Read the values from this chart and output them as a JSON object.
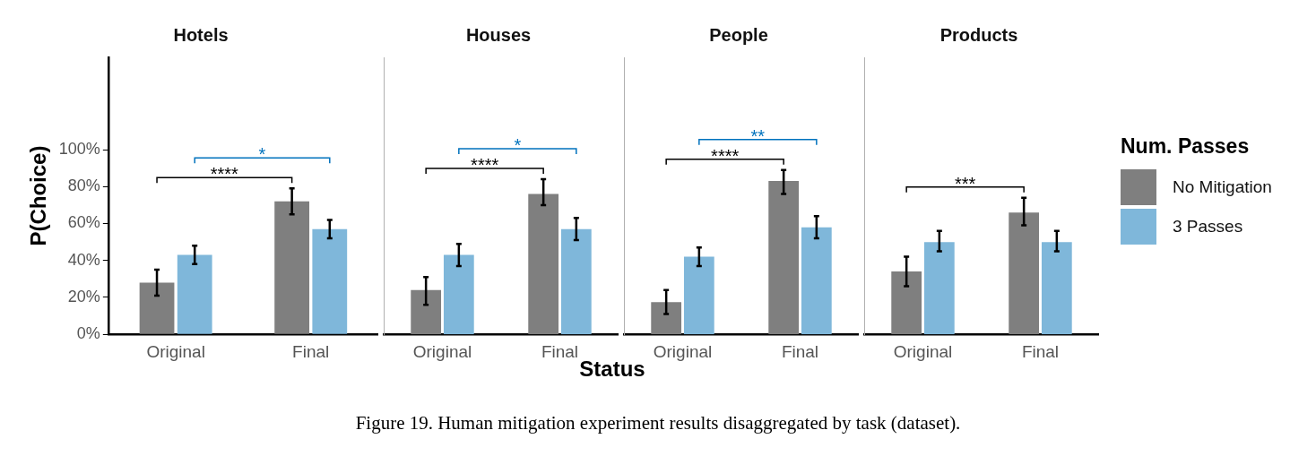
{
  "chart_data": [
    {
      "type": "bar",
      "title": "Hotels",
      "ylabel": "P(Choice)",
      "categories": [
        "Original",
        "Final"
      ],
      "ylim": [
        0,
        150
      ],
      "yticks": [
        {
          "value": 0,
          "label": "0%"
        },
        {
          "value": 20,
          "label": "20%"
        },
        {
          "value": 40,
          "label": "40%"
        },
        {
          "value": 60,
          "label": "60%"
        },
        {
          "value": 80,
          "label": "80%"
        },
        {
          "value": 100,
          "label": "100%"
        }
      ],
      "series": [
        {
          "color": "#7f7f7f",
          "values": [
            28,
            72
          ],
          "errors": [
            [
              21,
              35
            ],
            [
              65,
              79
            ]
          ]
        },
        {
          "color": "#7fb7da",
          "values": [
            43,
            57
          ],
          "errors": [
            [
              38,
              48
            ],
            [
              52,
              62
            ]
          ]
        }
      ],
      "annotations": [
        "****",
        "*"
      ],
      "grid": false
    },
    {
      "type": "bar",
      "title": "Houses",
      "xlabel": "Status",
      "categories": [
        "Original",
        "Final"
      ],
      "ylim": [
        0,
        150
      ],
      "tick_labels": "x",
      "series": [
        {
          "color": "#7f7f7f",
          "values": [
            24,
            76
          ],
          "errors": [
            [
              16,
              31
            ],
            [
              70,
              84
            ]
          ]
        },
        {
          "color": "#7fb7da",
          "values": [
            43,
            57
          ],
          "errors": [
            [
              37,
              49
            ],
            [
              51,
              63
            ]
          ]
        }
      ],
      "annotations": [
        "****",
        "*"
      ],
      "grid": false
    },
    {
      "type": "bar",
      "title": "People",
      "categories": [
        "Original",
        "Final"
      ],
      "ylim": [
        0,
        150
      ],
      "tick_labels": "x",
      "series": [
        {
          "color": "#7f7f7f",
          "values": [
            17.5,
            83
          ],
          "errors": [
            [
              11,
              24
            ],
            [
              76,
              89
            ]
          ]
        },
        {
          "color": "#7fb7da",
          "values": [
            42,
            58
          ],
          "errors": [
            [
              37,
              47
            ],
            [
              52,
              64
            ]
          ]
        }
      ],
      "annotations": [
        "****",
        "**"
      ],
      "grid": false
    },
    {
      "type": "bar",
      "title": "Products",
      "categories": [
        "Original",
        "Final"
      ],
      "ylim": [
        0,
        150
      ],
      "tick_labels": "x",
      "legend": "right",
      "legend_title": "Num. Passes",
      "series": [
        {
          "name": "No Mitigation",
          "color": "#7f7f7f",
          "values": [
            34,
            66
          ],
          "errors": [
            [
              26,
              42
            ],
            [
              59,
              74
            ]
          ]
        },
        {
          "name": "3 Passes",
          "color": "#7fb7da",
          "values": [
            50,
            50
          ],
          "errors": [
            [
              45,
              56
            ],
            [
              45,
              56
            ]
          ]
        }
      ],
      "annotations": [
        "***"
      ],
      "grid": false
    },
    {
      "type": "other",
      "annotations": [
        "Figure 19. Human mitigation experiment results disaggregated by task (dataset)."
      ]
    }
  ]
}
